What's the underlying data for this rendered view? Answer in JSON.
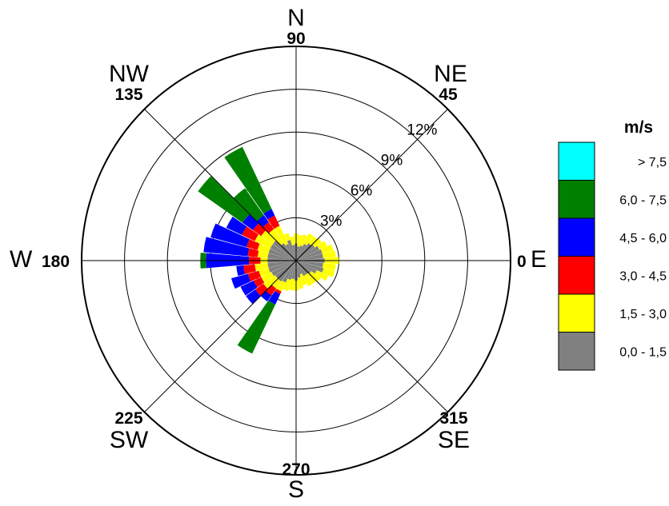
{
  "chart_data": {
    "type": "wind-rose",
    "value_unit": "%",
    "radial_ticks": [
      {
        "value": 3,
        "label": "3%"
      },
      {
        "value": 6,
        "label": "6%"
      },
      {
        "value": 9,
        "label": "9%"
      },
      {
        "value": 12,
        "label": "12%"
      }
    ],
    "max_radius_value": 15,
    "directions": [
      {
        "angle": 0,
        "angle_label": "0",
        "dir_label": "E"
      },
      {
        "angle": 45,
        "angle_label": "45",
        "dir_label": "NE"
      },
      {
        "angle": 90,
        "angle_label": "90",
        "dir_label": "N"
      },
      {
        "angle": 135,
        "angle_label": "135",
        "dir_label": "NW"
      },
      {
        "angle": 180,
        "angle_label": "180",
        "dir_label": "W"
      },
      {
        "angle": 225,
        "angle_label": "225",
        "dir_label": "SW"
      },
      {
        "angle": 270,
        "angle_label": "270",
        "dir_label": "S"
      },
      {
        "angle": 315,
        "angle_label": "315",
        "dir_label": "SE"
      }
    ],
    "legend": {
      "title": "m/s",
      "placement": "right",
      "classes": [
        {
          "label": "> 7,5",
          "color": "#00ffff"
        },
        {
          "label": "6,0 - 7,5",
          "color": "#008000"
        },
        {
          "label": "4,5 - 6,0",
          "color": "#0000ff"
        },
        {
          "label": "3,0 - 4,5",
          "color": "#ff0000"
        },
        {
          "label": "1,5 - 3,0",
          "color": "#ffff00"
        },
        {
          "label": "0,0 - 1,5",
          "color": "#808080"
        }
      ]
    },
    "stack_order": [
      "0,0 - 1,5",
      "1,5 - 3,0",
      "3,0 - 4,5",
      "4,5 - 6,0",
      "6,0 - 7,5",
      "> 7,5"
    ],
    "sector_width_deg": 9.5,
    "sectors": [
      {
        "angle": 180,
        "values": [
          2.0,
          0.5,
          0.8,
          3.0,
          0.4,
          0
        ]
      },
      {
        "angle": 170,
        "values": [
          2.0,
          0.7,
          0.7,
          3.1,
          0,
          0
        ]
      },
      {
        "angle": 160,
        "values": [
          2.0,
          0.8,
          0.8,
          2.6,
          0,
          0
        ]
      },
      {
        "angle": 150,
        "values": [
          2.0,
          1.2,
          1.0,
          1.2,
          0,
          0
        ]
      },
      {
        "angle": 140,
        "values": [
          2.0,
          1.0,
          0.7,
          0.9,
          3.8,
          0
        ]
      },
      {
        "angle": 130,
        "values": [
          1.5,
          1.2,
          0.6,
          0.6,
          2.3,
          0
        ]
      },
      {
        "angle": 120,
        "values": [
          1.3,
          1.4,
          0.8,
          0.5,
          4.8,
          0
        ]
      },
      {
        "angle": 110,
        "values": [
          1.5,
          0.5,
          0,
          0,
          0,
          0
        ]
      },
      {
        "angle": 100,
        "values": [
          1.1,
          0.6,
          0,
          0,
          0,
          0
        ]
      },
      {
        "angle": 90,
        "values": [
          1.2,
          0.7,
          0,
          0,
          0,
          0
        ]
      },
      {
        "angle": 80,
        "values": [
          1.0,
          0.8,
          0,
          0,
          0,
          0
        ]
      },
      {
        "angle": 70,
        "values": [
          1.1,
          0.8,
          0,
          0,
          0,
          0
        ]
      },
      {
        "angle": 60,
        "values": [
          1.3,
          0.8,
          0,
          0,
          0,
          0
        ]
      },
      {
        "angle": 50,
        "values": [
          1.5,
          0.6,
          0,
          0,
          0,
          0
        ]
      },
      {
        "angle": 40,
        "values": [
          1.6,
          0.6,
          0,
          0,
          0,
          0
        ]
      },
      {
        "angle": 30,
        "values": [
          1.8,
          0.6,
          0,
          0,
          0,
          0
        ]
      },
      {
        "angle": 20,
        "values": [
          1.9,
          0.8,
          0,
          0,
          0,
          0
        ]
      },
      {
        "angle": 10,
        "values": [
          1.9,
          0.9,
          0,
          0,
          0,
          0
        ]
      },
      {
        "angle": 0,
        "values": [
          2.0,
          1.0,
          0,
          0,
          0,
          0
        ]
      },
      {
        "angle": 350,
        "values": [
          1.9,
          0.9,
          0,
          0,
          0,
          0
        ]
      },
      {
        "angle": 340,
        "values": [
          2.0,
          0.8,
          0,
          0,
          0,
          0
        ]
      },
      {
        "angle": 330,
        "values": [
          1.6,
          0.9,
          0,
          0,
          0,
          0
        ]
      },
      {
        "angle": 320,
        "values": [
          1.3,
          0.8,
          0,
          0,
          0,
          0
        ]
      },
      {
        "angle": 310,
        "values": [
          1.2,
          0.8,
          0,
          0,
          0,
          0
        ]
      },
      {
        "angle": 300,
        "values": [
          1.2,
          0.8,
          0,
          0,
          0,
          0
        ]
      },
      {
        "angle": 290,
        "values": [
          1.0,
          0.8,
          0,
          0,
          0,
          0
        ]
      },
      {
        "angle": 280,
        "values": [
          1.2,
          0.8,
          0,
          0,
          0,
          0
        ]
      },
      {
        "angle": 270,
        "values": [
          1.4,
          0.7,
          0,
          0,
          0,
          0
        ]
      },
      {
        "angle": 260,
        "values": [
          1.3,
          0.8,
          0,
          0,
          0,
          0
        ]
      },
      {
        "angle": 250,
        "values": [
          1.4,
          0.8,
          0,
          0,
          0,
          0
        ]
      },
      {
        "angle": 240,
        "values": [
          1.7,
          0.7,
          0.2,
          0.8,
          3.8,
          0
        ]
      },
      {
        "angle": 230,
        "values": [
          1.8,
          0.6,
          0.6,
          0.5,
          0,
          0
        ]
      },
      {
        "angle": 220,
        "values": [
          1.8,
          1.0,
          0.7,
          0.8,
          0,
          0
        ]
      },
      {
        "angle": 210,
        "values": [
          1.9,
          0.8,
          0.6,
          1.0,
          0,
          0
        ]
      },
      {
        "angle": 200,
        "values": [
          2.0,
          0.7,
          0.8,
          1.2,
          0,
          0
        ]
      },
      {
        "angle": 190,
        "values": [
          2.0,
          0.9,
          0.8,
          0.5,
          0,
          0
        ]
      }
    ]
  }
}
